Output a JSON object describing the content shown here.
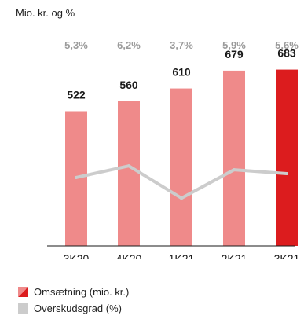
{
  "chart_data": {
    "type": "bar",
    "unit_label": "Mio. kr. og %",
    "categories": [
      "3K20",
      "4K20",
      "1K21",
      "2K21",
      "3K21"
    ],
    "series": [
      {
        "name": "Omsætning (mio. kr.)",
        "type": "bar",
        "values": [
          522,
          560,
          610,
          679,
          683
        ],
        "value_labels": [
          "522",
          "560",
          "610",
          "679",
          "683"
        ],
        "colors": [
          "#ef8a8a",
          "#ef8a8a",
          "#ef8a8a",
          "#ef8a8a",
          "#dc1c1e"
        ]
      },
      {
        "name": "Overskudsgrad (%)",
        "type": "line",
        "values": [
          5.3,
          6.2,
          3.7,
          5.9,
          5.6
        ],
        "value_labels": [
          "5,3%",
          "6,2%",
          "3,7%",
          "5,9%",
          "5,6%"
        ],
        "color": "#cccccc"
      }
    ],
    "ylim": [
      0,
      700
    ],
    "margin_ylim": [
      0,
      14
    ],
    "grid": false,
    "legend": "bottom-left"
  },
  "colors": {
    "bar": "#ef8a8a",
    "bar_highlight": "#dc1c1e",
    "line": "#cccccc",
    "pct_text": "#9b9b9b",
    "axis": "#1a1a1a"
  }
}
